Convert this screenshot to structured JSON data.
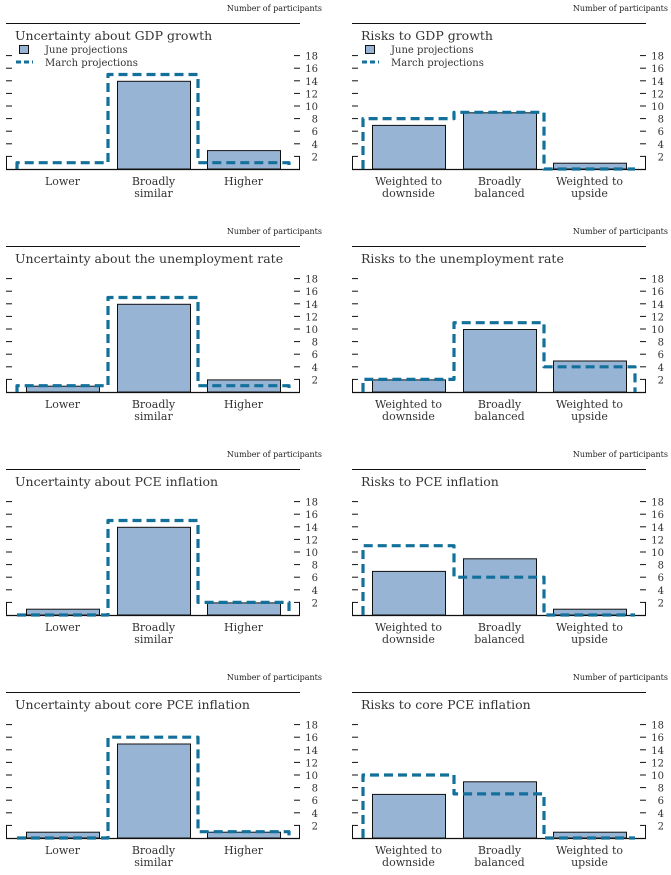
{
  "colors": {
    "june_fill": "#98b4d4",
    "june_stroke": "#111111",
    "march_line": "#13709b",
    "axis": "#111111"
  },
  "legend": {
    "june": "June projections",
    "march": "March projections"
  },
  "chart_data": [
    {
      "type": "bar",
      "title": "Uncertainty about GDP growth",
      "units": "Number of participants",
      "categories": [
        [
          "Lower"
        ],
        [
          "Broadly",
          "similar"
        ],
        [
          "Higher"
        ]
      ],
      "series": [
        {
          "name": "June projections",
          "values": [
            0,
            14,
            3
          ]
        },
        {
          "name": "March projections",
          "values": [
            1,
            15,
            1
          ]
        }
      ],
      "ylim": [
        0,
        18
      ],
      "yticks": [
        2,
        4,
        6,
        8,
        10,
        12,
        14,
        16,
        18
      ],
      "legend": "top-left"
    },
    {
      "type": "bar",
      "title": "Risks to GDP growth",
      "units": "Number of participants",
      "categories": [
        [
          "Weighted to",
          "downside"
        ],
        [
          "Broadly",
          "balanced"
        ],
        [
          "Weighted to",
          "upside"
        ]
      ],
      "series": [
        {
          "name": "June projections",
          "values": [
            7,
            9,
            1
          ]
        },
        {
          "name": "March projections",
          "values": [
            8,
            9,
            0
          ]
        }
      ],
      "ylim": [
        0,
        18
      ],
      "yticks": [
        2,
        4,
        6,
        8,
        10,
        12,
        14,
        16,
        18
      ],
      "legend": "top-left"
    },
    {
      "type": "bar",
      "title": "Uncertainty about the unemployment rate",
      "units": "Number of participants",
      "categories": [
        [
          "Lower"
        ],
        [
          "Broadly",
          "similar"
        ],
        [
          "Higher"
        ]
      ],
      "series": [
        {
          "name": "June projections",
          "values": [
            1,
            14,
            2
          ]
        },
        {
          "name": "March projections",
          "values": [
            1,
            15,
            1
          ]
        }
      ],
      "ylim": [
        0,
        18
      ],
      "yticks": [
        2,
        4,
        6,
        8,
        10,
        12,
        14,
        16,
        18
      ]
    },
    {
      "type": "bar",
      "title": "Risks to the unemployment rate",
      "units": "Number of participants",
      "categories": [
        [
          "Weighted to",
          "downside"
        ],
        [
          "Broadly",
          "balanced"
        ],
        [
          "Weighted to",
          "upside"
        ]
      ],
      "series": [
        {
          "name": "June projections",
          "values": [
            2,
            10,
            5
          ]
        },
        {
          "name": "March projections",
          "values": [
            2,
            11,
            4
          ]
        }
      ],
      "ylim": [
        0,
        18
      ],
      "yticks": [
        2,
        4,
        6,
        8,
        10,
        12,
        14,
        16,
        18
      ]
    },
    {
      "type": "bar",
      "title": "Uncertainty about PCE inflation",
      "units": "Number of participants",
      "categories": [
        [
          "Lower"
        ],
        [
          "Broadly",
          "similar"
        ],
        [
          "Higher"
        ]
      ],
      "series": [
        {
          "name": "June projections",
          "values": [
            1,
            14,
            2
          ]
        },
        {
          "name": "March projections",
          "values": [
            0,
            15,
            2
          ]
        }
      ],
      "ylim": [
        0,
        18
      ],
      "yticks": [
        2,
        4,
        6,
        8,
        10,
        12,
        14,
        16,
        18
      ]
    },
    {
      "type": "bar",
      "title": "Risks to PCE inflation",
      "units": "Number of participants",
      "categories": [
        [
          "Weighted to",
          "downside"
        ],
        [
          "Broadly",
          "balanced"
        ],
        [
          "Weighted to",
          "upside"
        ]
      ],
      "series": [
        {
          "name": "June projections",
          "values": [
            7,
            9,
            1
          ]
        },
        {
          "name": "March projections",
          "values": [
            11,
            6,
            0
          ]
        }
      ],
      "ylim": [
        0,
        18
      ],
      "yticks": [
        2,
        4,
        6,
        8,
        10,
        12,
        14,
        16,
        18
      ]
    },
    {
      "type": "bar",
      "title": "Uncertainty about core PCE inflation",
      "units": "Number of participants",
      "categories": [
        [
          "Lower"
        ],
        [
          "Broadly",
          "similar"
        ],
        [
          "Higher"
        ]
      ],
      "series": [
        {
          "name": "June projections",
          "values": [
            1,
            15,
            1
          ]
        },
        {
          "name": "March projections",
          "values": [
            0,
            16,
            1
          ]
        }
      ],
      "ylim": [
        0,
        18
      ],
      "yticks": [
        2,
        4,
        6,
        8,
        10,
        12,
        14,
        16,
        18
      ]
    },
    {
      "type": "bar",
      "title": "Risks to core PCE inflation",
      "units": "Number of participants",
      "categories": [
        [
          "Weighted to",
          "downside"
        ],
        [
          "Broadly",
          "balanced"
        ],
        [
          "Weighted to",
          "upside"
        ]
      ],
      "series": [
        {
          "name": "June projections",
          "values": [
            7,
            9,
            1
          ]
        },
        {
          "name": "March projections",
          "values": [
            10,
            7,
            0
          ]
        }
      ],
      "ylim": [
        0,
        18
      ],
      "yticks": [
        2,
        4,
        6,
        8,
        10,
        12,
        14,
        16,
        18
      ]
    }
  ]
}
